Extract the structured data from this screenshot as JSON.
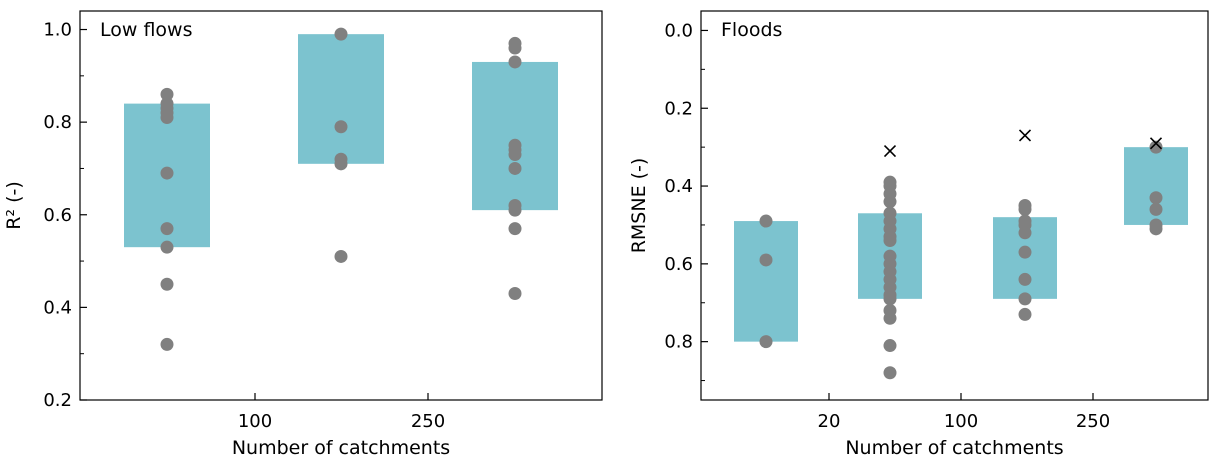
{
  "colors": {
    "box": "#7cc3cf",
    "point": "#808080",
    "marker_x": "#000000",
    "axis": "#000000"
  },
  "chart_data": [
    {
      "type": "box-strip",
      "title": "Low flows",
      "xlabel": "Number of catchments",
      "ylabel": "R² (-)",
      "x_tick_labels": [
        "100",
        "250"
      ],
      "ylim": [
        0.2,
        1.04
      ],
      "y_ticks": [
        "0.2",
        "0.4",
        "0.6",
        "0.8",
        "1.0"
      ],
      "y_tick_values": [
        0.2,
        0.4,
        0.6,
        0.8,
        1.0
      ],
      "y_inverted": false,
      "groups": [
        {
          "box": [
            0.53,
            0.84
          ],
          "points": [
            0.86,
            0.84,
            0.83,
            0.82,
            0.81,
            0.69,
            0.57,
            0.53,
            0.45,
            0.32
          ],
          "outliers": []
        },
        {
          "box": [
            0.71,
            0.99
          ],
          "points": [
            0.99,
            0.79,
            0.72,
            0.71,
            0.51
          ],
          "outliers": []
        },
        {
          "box": [
            0.61,
            0.93
          ],
          "points": [
            0.97,
            0.96,
            0.93,
            0.75,
            0.74,
            0.73,
            0.7,
            0.62,
            0.61,
            0.57,
            0.43
          ],
          "outliers": []
        }
      ]
    },
    {
      "type": "box-strip",
      "title": "Floods",
      "xlabel": "Number of catchments",
      "ylabel": "RMSNE (-)",
      "x_tick_labels": [
        "20",
        "100",
        "250"
      ],
      "ylim": [
        -0.05,
        0.95
      ],
      "y_ticks": [
        "0.0",
        "0.2",
        "0.4",
        "0.6",
        "0.8"
      ],
      "y_tick_values": [
        0.0,
        0.2,
        0.4,
        0.6,
        0.8
      ],
      "y_inverted": true,
      "groups": [
        {
          "box": [
            0.49,
            0.8
          ],
          "points": [
            0.49,
            0.59,
            0.8
          ],
          "outliers": []
        },
        {
          "box": [
            0.47,
            0.69
          ],
          "points": [
            0.39,
            0.4,
            0.42,
            0.44,
            0.47,
            0.49,
            0.51,
            0.53,
            0.54,
            0.58,
            0.6,
            0.62,
            0.64,
            0.66,
            0.68,
            0.69,
            0.72,
            0.74,
            0.81,
            0.88
          ],
          "outliers": [
            0.31
          ]
        },
        {
          "box": [
            0.48,
            0.69
          ],
          "points": [
            0.45,
            0.46,
            0.49,
            0.5,
            0.52,
            0.57,
            0.64,
            0.69,
            0.73
          ],
          "outliers": [
            0.27
          ]
        },
        {
          "box": [
            0.3,
            0.5
          ],
          "points": [
            0.3,
            0.43,
            0.46,
            0.5,
            0.51
          ],
          "outliers": [
            0.29
          ]
        }
      ]
    }
  ]
}
